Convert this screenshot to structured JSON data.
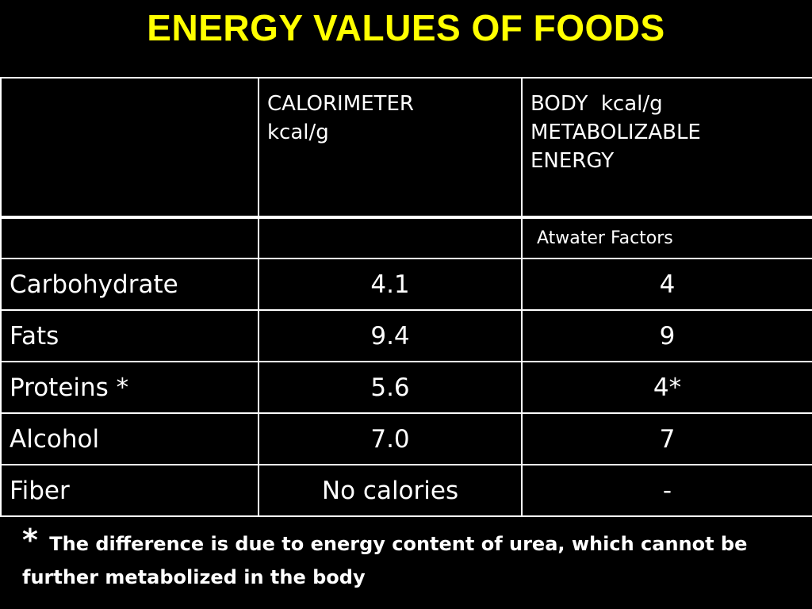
{
  "title": "ENERGY VALUES OF FOODS",
  "table": {
    "header": {
      "col1": "",
      "col2_line1": "CALORIMETER",
      "col2_line2": "kcal/g",
      "col3_line1": "BODY  kcal/g",
      "col3_line2": "METABOLIZABLE",
      "col3_line3": "ENERGY"
    },
    "subheader": {
      "col3": "Atwater Factors"
    },
    "rows": [
      {
        "food": "Carbohydrate",
        "calorimeter": "4.1",
        "body": "4"
      },
      {
        "food": "Fats",
        "calorimeter": "9.4",
        "body": "9"
      },
      {
        "food": "Proteins *",
        "calorimeter": "5.6",
        "body": "4*"
      },
      {
        "food": "Alcohol",
        "calorimeter": "7.0",
        "body": "7"
      },
      {
        "food": "Fiber",
        "calorimeter": "No calories",
        "body": "-"
      }
    ]
  },
  "footnote": {
    "marker": "*",
    "text": "The difference is due to energy content of urea, which cannot be further metabolized in the body"
  },
  "colors": {
    "title": "#ffff00",
    "background": "#000000",
    "text": "#ffffff"
  }
}
